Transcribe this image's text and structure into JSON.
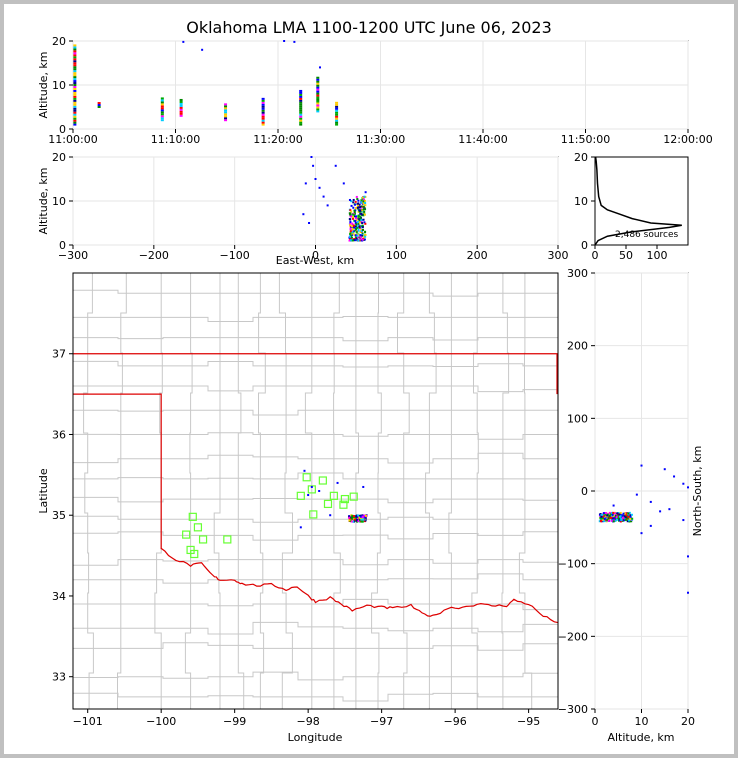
{
  "title": "Oklahoma LMA 1100-1200 UTC June 06, 2023",
  "chart_data": [
    {
      "type": "scatter",
      "panel": "altitude-time",
      "ylabel": "Altitude, km",
      "xlim": [
        "11:00:00",
        "12:00:00"
      ],
      "ylim": [
        0,
        20
      ],
      "xticks": [
        "11:00:00",
        "11:10:00",
        "11:20:00",
        "11:30:00",
        "11:40:00",
        "11:50:00",
        "12:00:00"
      ],
      "yticks": [
        "0",
        "10",
        "20"
      ],
      "grid": true,
      "flash_columns": [
        {
          "time": "11:00:08",
          "alt_min": 1,
          "alt_max": 19
        },
        {
          "time": "11:02:30",
          "alt_min": 5,
          "alt_max": 6
        },
        {
          "time": "11:08:40",
          "alt_min": 2,
          "alt_max": 7
        },
        {
          "time": "11:10:30",
          "alt_min": 3,
          "alt_max": 7
        },
        {
          "time": "11:14:50",
          "alt_min": 2,
          "alt_max": 6
        },
        {
          "time": "11:18:30",
          "alt_min": 1,
          "alt_max": 7
        },
        {
          "time": "11:22:10",
          "alt_min": 1,
          "alt_max": 9
        },
        {
          "time": "11:23:50",
          "alt_min": 4,
          "alt_max": 12
        },
        {
          "time": "11:25:40",
          "alt_min": 1,
          "alt_max": 6
        }
      ]
    },
    {
      "type": "scatter",
      "panel": "altitude-east-west",
      "xlabel": "East-West, km",
      "ylabel": "Altitude, km",
      "xlim": [
        -300,
        300
      ],
      "ylim": [
        0,
        20
      ],
      "xticks": [
        "−300",
        "−200",
        "−100",
        "0",
        "100",
        "200",
        "300"
      ],
      "yticks": [
        "0",
        "10",
        "20"
      ],
      "grid": true,
      "cluster": {
        "x_min": 42,
        "x_max": 62,
        "alt_min": 1,
        "alt_max": 11
      },
      "scattered_points": [
        [
          -5,
          20
        ],
        [
          -3,
          18
        ],
        [
          0,
          15
        ],
        [
          -12,
          14
        ],
        [
          10,
          11
        ],
        [
          25,
          18
        ],
        [
          35,
          14
        ],
        [
          -15,
          7
        ],
        [
          -8,
          5
        ],
        [
          62,
          12
        ],
        [
          15,
          9
        ],
        [
          5,
          13
        ]
      ]
    },
    {
      "type": "line",
      "panel": "altitude-histogram",
      "xlim": [
        0,
        150
      ],
      "ylim": [
        0,
        20
      ],
      "xticks": [
        "0",
        "50",
        "100"
      ],
      "yticks": [
        "0",
        "10",
        "20"
      ],
      "annotation": "2,486 sources",
      "profile": [
        [
          0,
          0
        ],
        [
          5,
          1
        ],
        [
          20,
          2
        ],
        [
          60,
          3
        ],
        [
          120,
          4
        ],
        [
          140,
          4.5
        ],
        [
          90,
          5
        ],
        [
          60,
          6
        ],
        [
          40,
          7
        ],
        [
          20,
          8
        ],
        [
          10,
          9
        ],
        [
          6,
          11
        ],
        [
          4,
          14
        ],
        [
          3,
          17
        ],
        [
          2,
          19
        ],
        [
          1,
          20
        ]
      ]
    },
    {
      "type": "map",
      "panel": "plan-view",
      "xlabel": "Longitude",
      "ylabel": "Latitude",
      "xlim": [
        -101.2,
        -94.6
      ],
      "ylim": [
        32.6,
        38.0
      ],
      "xticks": [
        "−101",
        "−100",
        "−99",
        "−98",
        "−97",
        "−96",
        "−95"
      ],
      "yticks": [
        "33",
        "34",
        "35",
        "36",
        "37"
      ],
      "state_border_color": "#dd0000",
      "county_border_color": "#c8c8c8",
      "stations_color": "#66ff33",
      "stations": [
        [
          -98.02,
          35.47
        ],
        [
          -97.8,
          35.43
        ],
        [
          -98.1,
          35.24
        ],
        [
          -97.95,
          35.32
        ],
        [
          -97.65,
          35.24
        ],
        [
          -97.5,
          35.2
        ],
        [
          -97.38,
          35.23
        ],
        [
          -97.52,
          35.13
        ],
        [
          -97.73,
          35.14
        ],
        [
          -97.93,
          35.01
        ],
        [
          -99.57,
          34.98
        ],
        [
          -99.5,
          34.85
        ],
        [
          -99.66,
          34.76
        ],
        [
          -99.43,
          34.7
        ],
        [
          -99.1,
          34.7
        ],
        [
          -99.6,
          34.57
        ],
        [
          -99.55,
          34.52
        ]
      ],
      "source_cluster": {
        "lon_min": -97.45,
        "lon_max": -97.2,
        "lat_min": 34.92,
        "lat_max": 35.0
      }
    },
    {
      "type": "scatter",
      "panel": "north-south-altitude",
      "xlabel": "Altitude, km",
      "ylabel": "North-South, km",
      "xlim": [
        0,
        20
      ],
      "ylim": [
        -300,
        300
      ],
      "xticks": [
        "0",
        "10",
        "20"
      ],
      "yticks": [
        "−300",
        "−200",
        "−100",
        "0",
        "100",
        "200",
        "300"
      ],
      "grid": true,
      "cluster": {
        "alt_min": 1,
        "alt_max": 8,
        "ns_min": -42,
        "ns_max": -30
      },
      "scattered_points": [
        [
          10,
          35
        ],
        [
          15,
          30
        ],
        [
          17,
          20
        ],
        [
          19,
          10
        ],
        [
          20,
          5
        ],
        [
          12,
          -15
        ],
        [
          9,
          -5
        ],
        [
          14,
          -28
        ],
        [
          16,
          -25
        ],
        [
          19,
          -40
        ],
        [
          12,
          -48
        ],
        [
          10,
          -58
        ],
        [
          20,
          -90
        ],
        [
          20,
          -140
        ],
        [
          4,
          -20
        ]
      ]
    }
  ]
}
